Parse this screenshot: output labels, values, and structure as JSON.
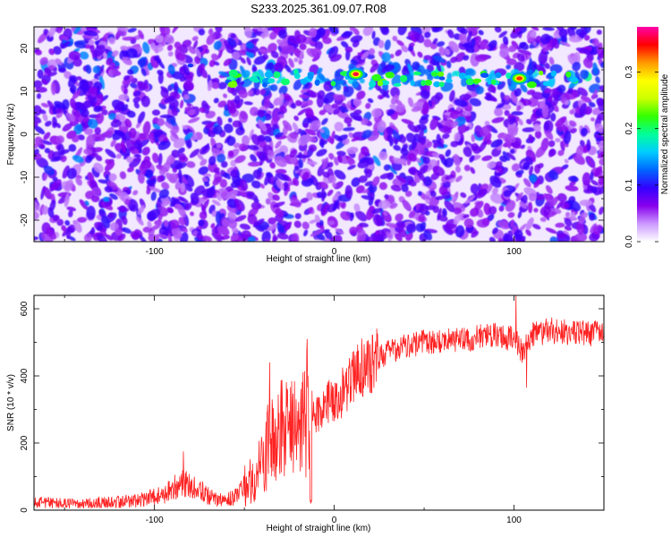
{
  "page": {
    "title": "S233.2025.361.09.07.R08"
  },
  "chart_data": [
    {
      "type": "heatmap",
      "title": "S233.2025.361.09.07.R08",
      "xlabel": "Height of straight line (km)",
      "ylabel": "Frequency (Hz)",
      "xlim": [
        -167,
        150
      ],
      "ylim": [
        -25,
        25
      ],
      "x_ticks": [
        -100,
        0,
        100
      ],
      "y_ticks": [
        -20,
        -10,
        0,
        10,
        20
      ],
      "colorbar": {
        "label": "Normalized spectral amplitude",
        "range": [
          0,
          0.38
        ],
        "ticks": [
          0.0,
          0.1,
          0.2,
          0.3
        ],
        "tick_labels": [
          "0.0",
          "0.1",
          "0.2",
          "0.3"
        ],
        "colormap": [
          "#ffffff",
          "#cc99ff",
          "#8800ee",
          "#3300ff",
          "#0066ff",
          "#00ccff",
          "#00ff99",
          "#33ff00",
          "#ccff00",
          "#ffff00",
          "#ff9900",
          "#ff0000",
          "#ff00aa"
        ]
      },
      "description_features": {
        "strong_band_frequency_hz": 13,
        "strong_band_x_range_km": [
          -60,
          150
        ],
        "peak_points": [
          {
            "x": 12,
            "y": 14,
            "value": 0.36
          },
          {
            "x": 103,
            "y": 13,
            "value": 0.34
          },
          {
            "x": 60,
            "y": 13,
            "value": 0.12
          },
          {
            "x": -80,
            "y": 16,
            "value": 0.11
          }
        ]
      }
    },
    {
      "type": "line",
      "xlabel": "Height of straight line (km)",
      "ylabel": "SNR (10 * v/v)",
      "xlim": [
        -167,
        150
      ],
      "ylim": [
        0,
        640
      ],
      "x_ticks": [
        -100,
        0,
        100
      ],
      "y_ticks": [
        0,
        200,
        400,
        600
      ],
      "series_color": "#ff2222",
      "trend": {
        "x": [
          -167,
          -140,
          -110,
          -95,
          -85,
          -75,
          -65,
          -55,
          -45,
          -40,
          -35,
          -30,
          -25,
          -20,
          -15,
          -10,
          -5,
          0,
          5,
          10,
          15,
          20,
          25,
          30,
          40,
          50,
          60,
          70,
          80,
          90,
          100,
          105,
          110,
          120,
          130,
          140,
          150
        ],
        "y": [
          22,
          18,
          28,
          45,
          80,
          60,
          28,
          40,
          100,
          170,
          200,
          230,
          240,
          260,
          290,
          290,
          310,
          330,
          355,
          390,
          420,
          440,
          455,
          470,
          490,
          500,
          505,
          510,
          515,
          520,
          510,
          470,
          520,
          535,
          530,
          525,
          530
        ]
      },
      "notable_points": [
        {
          "x": -84,
          "y": 175
        },
        {
          "x": -36,
          "y": 440
        },
        {
          "x": -15,
          "y": 510
        },
        {
          "x": -13,
          "y": 20
        },
        {
          "x": 101,
          "y": 640
        },
        {
          "x": 107,
          "y": 365
        }
      ]
    }
  ]
}
